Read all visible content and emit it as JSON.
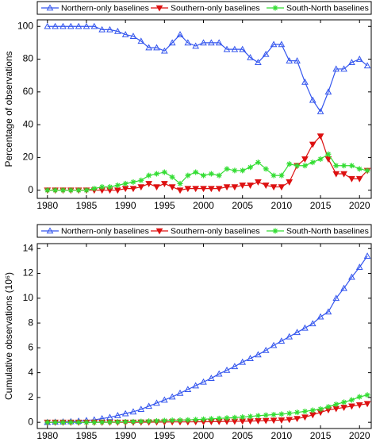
{
  "chart_data": [
    {
      "type": "line",
      "ylabel": "Percentage of observations",
      "x": [
        1980,
        1981,
        1982,
        1983,
        1984,
        1985,
        1986,
        1987,
        1988,
        1989,
        1990,
        1991,
        1992,
        1993,
        1994,
        1995,
        1996,
        1997,
        1998,
        1999,
        2000,
        2001,
        2002,
        2003,
        2004,
        2005,
        2006,
        2007,
        2008,
        2009,
        2010,
        2011,
        2012,
        2013,
        2014,
        2015,
        2016,
        2017,
        2018,
        2019,
        2020,
        2021
      ],
      "xlim": [
        1978.7,
        2021.5
      ],
      "xticks": [
        1980,
        1985,
        1990,
        1995,
        2000,
        2005,
        2010,
        2015,
        2020
      ],
      "ylim": [
        -5,
        104
      ],
      "yticks": [
        0,
        20,
        40,
        60,
        80,
        100
      ],
      "series": [
        {
          "name": "Northern-only baselines",
          "color": "#3355ee",
          "marker": "triangle-up",
          "values": [
            100,
            100,
            100,
            100,
            100,
            100,
            100,
            98,
            98,
            97,
            95,
            94,
            91,
            87,
            87,
            85,
            90,
            95,
            90,
            88,
            90,
            90,
            90,
            86,
            86,
            86,
            81,
            78,
            83,
            89,
            89,
            79,
            79,
            66,
            55,
            48,
            60,
            74,
            74,
            78,
            80,
            76
          ]
        },
        {
          "name": "Southern-only baselines",
          "color": "#dd1111",
          "marker": "triangle-down",
          "values": [
            0,
            0,
            0,
            0,
            0,
            0,
            0,
            0,
            0,
            0,
            1,
            1,
            2,
            4,
            2,
            4,
            2,
            0,
            1,
            1,
            1,
            1,
            1,
            2,
            2,
            3,
            3,
            5,
            3,
            2,
            2,
            5,
            15,
            19,
            28,
            33,
            19,
            10,
            10,
            7,
            7,
            12
          ]
        },
        {
          "name": "South-North baselines",
          "color": "#33dd33",
          "marker": "star",
          "values": [
            0,
            0,
            0,
            0,
            0,
            0,
            1,
            2,
            2,
            3,
            4,
            5,
            6,
            9,
            10,
            11,
            8,
            4,
            9,
            11,
            9,
            10,
            9,
            13,
            12,
            12,
            14,
            17,
            13,
            9,
            9,
            16,
            15,
            15,
            17,
            19,
            22,
            15,
            15,
            15,
            13,
            12
          ]
        }
      ]
    },
    {
      "type": "line",
      "ylabel": "Cumulative observations (10⁶)",
      "x": [
        1980,
        1981,
        1982,
        1983,
        1984,
        1985,
        1986,
        1987,
        1988,
        1989,
        1990,
        1991,
        1992,
        1993,
        1994,
        1995,
        1996,
        1997,
        1998,
        1999,
        2000,
        2001,
        2002,
        2003,
        2004,
        2005,
        2006,
        2007,
        2008,
        2009,
        2010,
        2011,
        2012,
        2013,
        2014,
        2015,
        2016,
        2017,
        2018,
        2019,
        2020,
        2021
      ],
      "xlim": [
        1978.7,
        2021.5
      ],
      "xticks": [
        1980,
        1985,
        1990,
        1995,
        2000,
        2005,
        2010,
        2015,
        2020
      ],
      "ylim": [
        -0.5,
        14.4
      ],
      "yticks": [
        0,
        2,
        4,
        6,
        8,
        10,
        12,
        14
      ],
      "series": [
        {
          "name": "Northern-only baselines",
          "color": "#3355ee",
          "marker": "triangle-up",
          "values": [
            0,
            0.02,
            0.04,
            0.06,
            0.1,
            0.15,
            0.2,
            0.3,
            0.4,
            0.55,
            0.7,
            0.85,
            1.05,
            1.3,
            1.55,
            1.8,
            2.05,
            2.35,
            2.65,
            2.95,
            3.25,
            3.55,
            3.9,
            4.2,
            4.5,
            4.85,
            5.15,
            5.45,
            5.8,
            6.2,
            6.55,
            6.9,
            7.25,
            7.6,
            7.95,
            8.5,
            8.9,
            10,
            10.8,
            11.7,
            12.5,
            13.4
          ]
        },
        {
          "name": "Southern-only baselines",
          "color": "#dd1111",
          "marker": "triangle-down",
          "values": [
            0,
            0,
            0,
            0,
            0,
            0,
            0,
            0,
            0,
            0,
            0,
            0,
            0.01,
            0.01,
            0.02,
            0.02,
            0.03,
            0.03,
            0.03,
            0.04,
            0.04,
            0.05,
            0.06,
            0.07,
            0.08,
            0.09,
            0.1,
            0.12,
            0.14,
            0.16,
            0.18,
            0.22,
            0.3,
            0.42,
            0.6,
            0.8,
            1.0,
            1.1,
            1.2,
            1.3,
            1.4,
            1.5
          ]
        },
        {
          "name": "South-North baselines",
          "color": "#33dd33",
          "marker": "star",
          "values": [
            0,
            0,
            0,
            0,
            0,
            0,
            0,
            0.01,
            0.02,
            0.03,
            0.04,
            0.05,
            0.07,
            0.09,
            0.11,
            0.14,
            0.16,
            0.17,
            0.19,
            0.22,
            0.25,
            0.28,
            0.31,
            0.35,
            0.38,
            0.42,
            0.47,
            0.53,
            0.58,
            0.62,
            0.66,
            0.72,
            0.8,
            0.88,
            0.97,
            1.07,
            1.25,
            1.45,
            1.62,
            1.8,
            2.05,
            2.2
          ]
        }
      ]
    }
  ]
}
